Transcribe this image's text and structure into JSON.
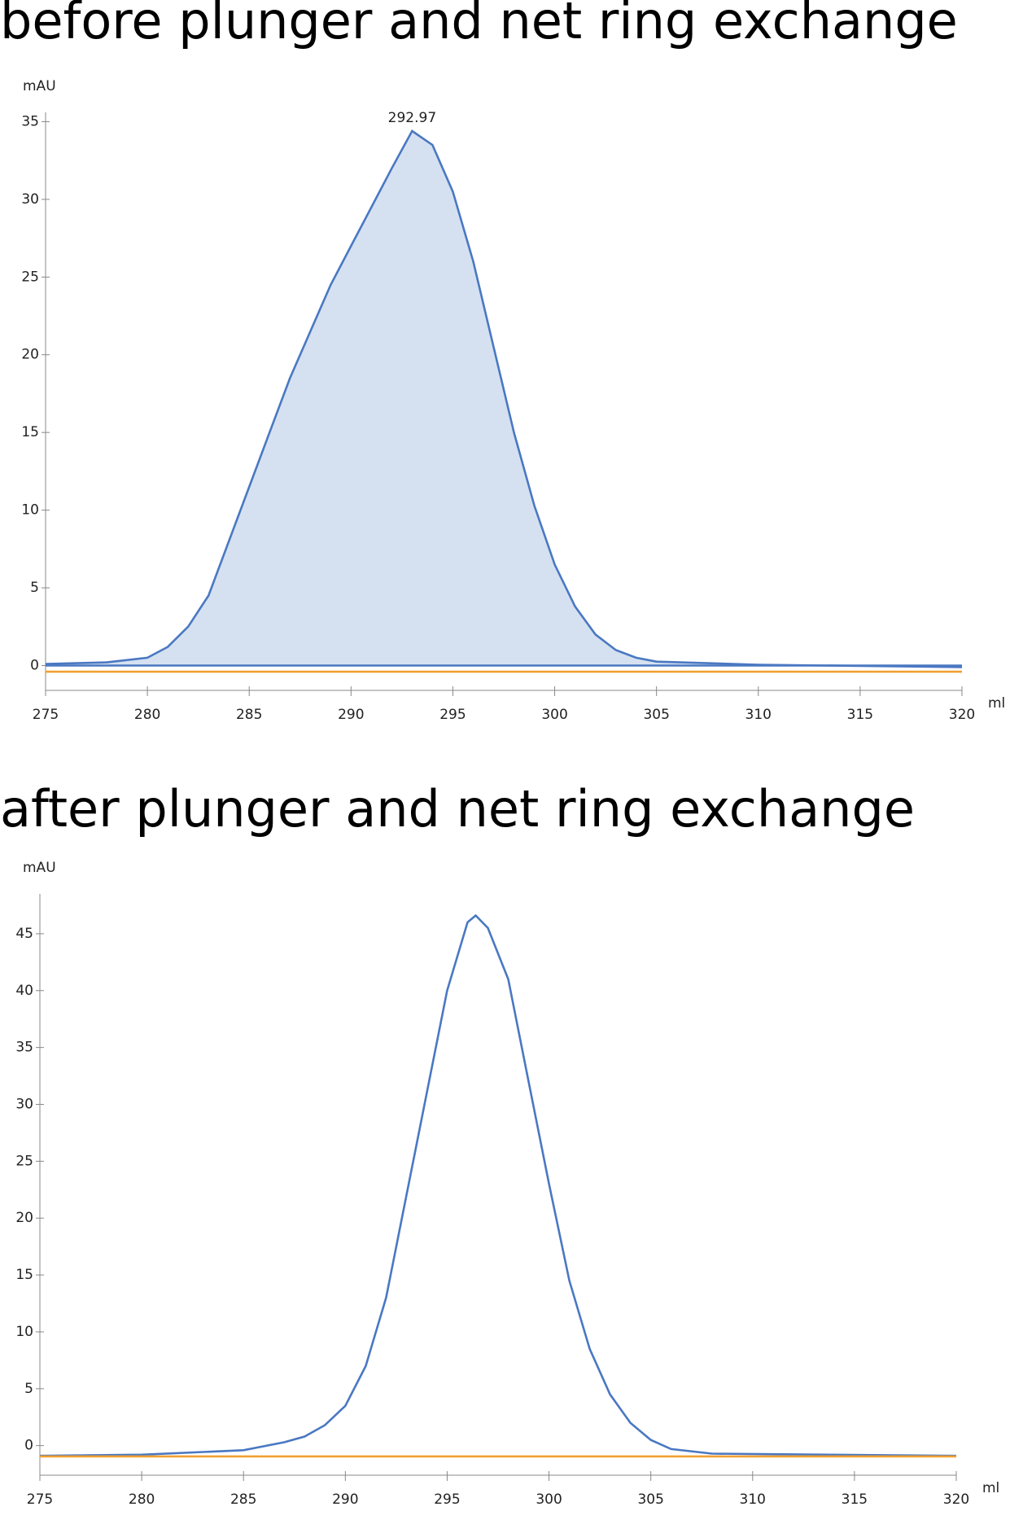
{
  "chart_data": [
    {
      "type": "line",
      "title": "before plunger and net ring exchange",
      "y_label": "mAU",
      "x_label": "ml",
      "xlim": [
        275,
        320
      ],
      "xticks": [
        275,
        280,
        285,
        290,
        295,
        300,
        305,
        310,
        315,
        320
      ],
      "ylim": [
        -1.6,
        35.6
      ],
      "yticks": [
        0,
        5,
        10,
        15,
        20,
        25,
        30,
        35
      ],
      "peak_label": "292.97",
      "series": [
        {
          "color": "#4a78c2",
          "fill": "#d5e1f1",
          "x": [
            275,
            278,
            280,
            281,
            282,
            283,
            284,
            285,
            286,
            287,
            288,
            289,
            290,
            291,
            292,
            293,
            294,
            295,
            296,
            297,
            298,
            299,
            300,
            301,
            302,
            303,
            304,
            305,
            310,
            320
          ],
          "values": [
            0.1,
            0.2,
            0.5,
            1.2,
            2.5,
            4.5,
            8,
            11.5,
            15,
            18.5,
            21.5,
            24.5,
            27,
            29.5,
            32,
            34.4,
            33.5,
            30.5,
            26,
            20.5,
            15,
            10.3,
            6.5,
            3.8,
            2,
            1,
            0.5,
            0.25,
            0.05,
            -0.1
          ]
        },
        {
          "color": "#4a78c2",
          "x": [
            275,
            320
          ],
          "values": [
            0,
            0
          ]
        },
        {
          "color": "#f0a030",
          "x": [
            275,
            320
          ],
          "values": [
            -0.4,
            -0.4
          ]
        }
      ]
    },
    {
      "type": "line",
      "title": "after plunger and net ring exchange",
      "y_label": "mAU",
      "x_label": "ml",
      "xlim": [
        275,
        320
      ],
      "xticks": [
        275,
        280,
        285,
        290,
        295,
        300,
        305,
        310,
        315,
        320
      ],
      "ylim": [
        -2.6,
        48.5
      ],
      "yticks": [
        0,
        5,
        10,
        15,
        20,
        25,
        30,
        35,
        40,
        45
      ],
      "series": [
        {
          "color": "#4a78c2",
          "x": [
            275,
            280,
            285,
            287,
            288,
            289,
            290,
            291,
            292,
            293,
            294,
            295,
            296,
            296.4,
            297,
            298,
            299,
            300,
            301,
            302,
            303,
            304,
            305,
            306,
            308,
            320
          ],
          "values": [
            -0.9,
            -0.8,
            -0.4,
            0.3,
            0.8,
            1.8,
            3.5,
            7,
            13,
            22,
            31,
            40,
            46,
            46.6,
            45.5,
            41,
            32,
            23,
            14.5,
            8.5,
            4.5,
            2,
            0.5,
            -0.3,
            -0.7,
            -0.9
          ]
        },
        {
          "color": "#f0a030",
          "x": [
            275,
            320
          ],
          "values": [
            -0.95,
            -0.95
          ]
        }
      ]
    }
  ]
}
